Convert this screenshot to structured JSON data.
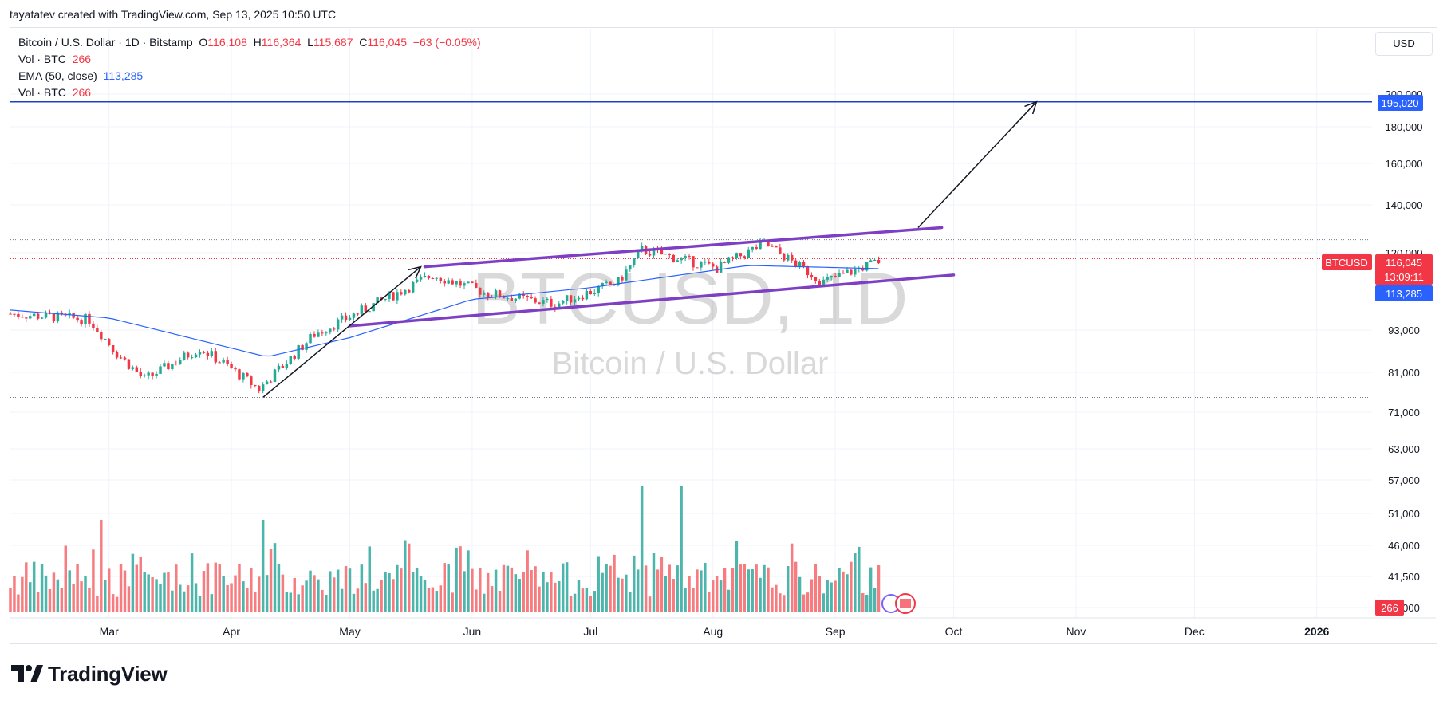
{
  "header": {
    "credit": "tayatatev created with TradingView.com, Sep 13, 2025 10:50 UTC"
  },
  "legend": {
    "symbol": "Bitcoin / U.S. Dollar · 1D · Bitstamp",
    "o_label": "O",
    "o_value": "116,108",
    "h_label": "H",
    "h_value": "116,364",
    "l_label": "L",
    "l_value": "115,687",
    "c_label": "C",
    "c_value": "116,045",
    "change": "−63 (−0.05%)",
    "vol1_label": "Vol · BTC",
    "vol1_value": "266",
    "ema_label": "EMA (50, close)",
    "ema_value": "113,285",
    "vol2_label": "Vol · BTC",
    "vol2_value": "266"
  },
  "currency": "USD",
  "watermark": {
    "ticker": "BTCUSD, 1D",
    "name": "Bitcoin / U.S. Dollar"
  },
  "price_badges": {
    "target": "195,020",
    "symbol": "BTCUSD",
    "last": "116,045",
    "countdown": "13:09:11",
    "ema": "113,285",
    "volume": "266"
  },
  "logo": "TradingView",
  "colors": {
    "up": "#22ab94",
    "down": "#f23645",
    "vol_up": "#4db6ac",
    "vol_down": "#f77c80",
    "ema": "#2962ff",
    "channel": "#7e3fc4",
    "target_line": "#1e3fd0",
    "arrow": "#131722"
  },
  "chart_data": {
    "type": "candlestick",
    "title": "Bitcoin / U.S. Dollar · 1D · Bitstamp",
    "y_scale": "log",
    "y_ticks": [
      "200,000",
      "180,000",
      "160,000",
      "140,000",
      "120,000",
      "93,000",
      "81,000",
      "71,000",
      "63,000",
      "57,000",
      "51,000",
      "46,000",
      "41,500",
      "37,000"
    ],
    "x_ticks": [
      "Mar",
      "Apr",
      "May",
      "Jun",
      "Jul",
      "Aug",
      "Sep",
      "Oct",
      "Nov",
      "Dec",
      "2026"
    ],
    "x_range": [
      "2025-02-04",
      "2026-01-15"
    ],
    "price_range": [
      75000,
      123500
    ],
    "ohlc_anchors": [
      {
        "date": "2025-02-04",
        "close": 97800
      },
      {
        "date": "2025-02-24",
        "close": 96000
      },
      {
        "date": "2025-03-03",
        "close": 86000
      },
      {
        "date": "2025-03-10",
        "close": 79000
      },
      {
        "date": "2025-03-24",
        "close": 87500
      },
      {
        "date": "2025-03-31",
        "close": 82500
      },
      {
        "date": "2025-04-08",
        "close": 76500
      },
      {
        "date": "2025-04-22",
        "close": 91500
      },
      {
        "date": "2025-05-12",
        "close": 104000
      },
      {
        "date": "2025-05-22",
        "close": 111000
      },
      {
        "date": "2025-06-05",
        "close": 104500
      },
      {
        "date": "2025-06-22",
        "close": 101000
      },
      {
        "date": "2025-07-08",
        "close": 108500
      },
      {
        "date": "2025-07-14",
        "close": 120500
      },
      {
        "date": "2025-08-02",
        "close": 113500
      },
      {
        "date": "2025-08-14",
        "close": 123000
      },
      {
        "date": "2025-08-29",
        "close": 108500
      },
      {
        "date": "2025-09-12",
        "close": 116045
      }
    ],
    "ema_50_anchors": [
      {
        "date": "2025-02-04",
        "value": 99000
      },
      {
        "date": "2025-03-01",
        "value": 96500
      },
      {
        "date": "2025-04-10",
        "value": 85000
      },
      {
        "date": "2025-05-01",
        "value": 90500
      },
      {
        "date": "2025-06-01",
        "value": 102500
      },
      {
        "date": "2025-07-01",
        "value": 106500
      },
      {
        "date": "2025-08-10",
        "value": 114500
      },
      {
        "date": "2025-09-12",
        "value": 113285
      }
    ],
    "volume_spikes": [
      {
        "date": "2025-02-27",
        "value": "high"
      },
      {
        "date": "2025-04-09",
        "value": "high"
      },
      {
        "date": "2025-07-14",
        "value": "max"
      },
      {
        "date": "2025-07-24",
        "value": "max"
      }
    ],
    "last_volume": 266,
    "annotations": {
      "horizontal_target": 195020,
      "channel_upper": [
        {
          "date": "2025-05-20",
          "price": 114000
        },
        {
          "date": "2025-09-28",
          "price": 129500
        }
      ],
      "channel_lower": [
        {
          "date": "2025-05-01",
          "price": 94000
        },
        {
          "date": "2025-10-01",
          "price": 111000
        }
      ],
      "arrow_1": [
        {
          "date": "2025-04-09",
          "price": 74500
        },
        {
          "date": "2025-05-19",
          "price": 114000
        }
      ],
      "arrow_2": [
        {
          "date": "2025-09-22",
          "price": 129500
        },
        {
          "date": "2025-10-22",
          "price": 195020
        }
      ],
      "dotted_levels": [
        124500,
        117000,
        74500
      ]
    }
  }
}
